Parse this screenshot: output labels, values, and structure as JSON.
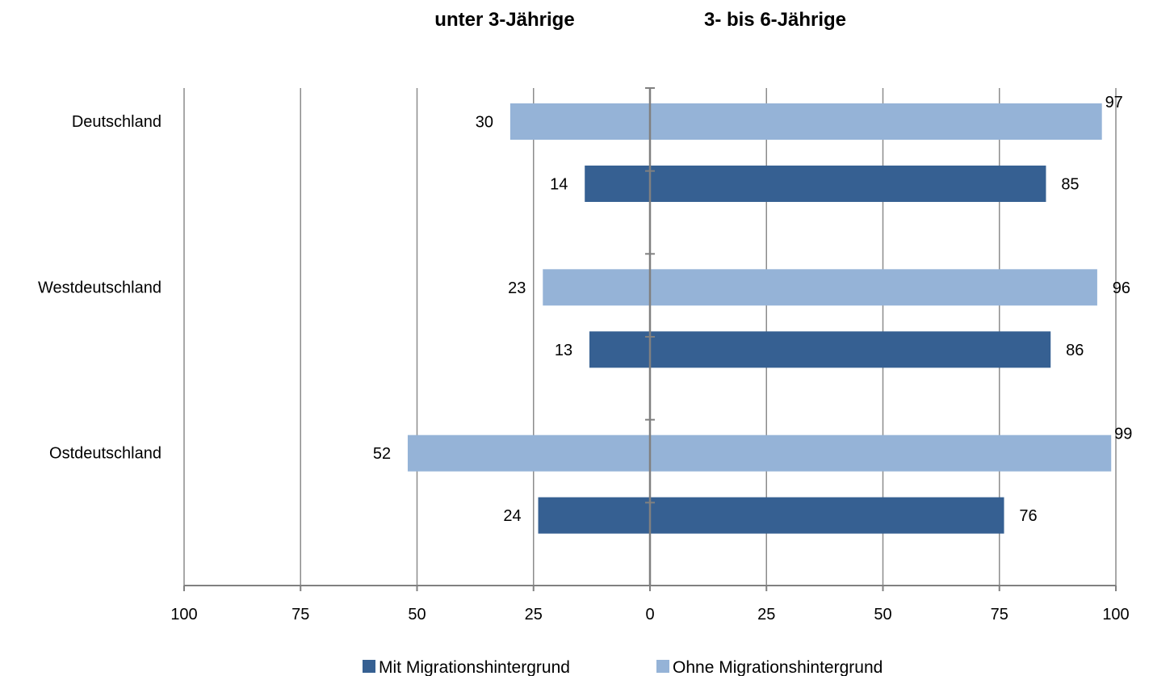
{
  "chart_data": {
    "type": "bar",
    "orientation": "horizontal",
    "layout": "diverging",
    "headings": {
      "left": "unter 3-Jährige",
      "right": "3- bis 6-Jährige"
    },
    "categories": [
      "Deutschland",
      "Westdeutschland",
      "Ostdeutschland"
    ],
    "series": [
      {
        "name": "Ohne Migrationshintergrund",
        "color": "#95B3D7",
        "left_values": [
          30,
          23,
          52
        ],
        "right_values": [
          97,
          96,
          99
        ]
      },
      {
        "name": "Mit Migrationshintergrund",
        "color": "#366092",
        "left_values": [
          14,
          13,
          24
        ],
        "right_values": [
          85,
          86,
          76
        ]
      }
    ],
    "legend_order": [
      "Mit Migrationshintergrund",
      "Ohne Migrationshintergrund"
    ],
    "xlim": [
      -100,
      100
    ],
    "x_ticks": [
      "100",
      "75",
      "50",
      "25",
      "0",
      "25",
      "50",
      "75",
      "100"
    ],
    "grid": true,
    "legend_position": "bottom"
  }
}
